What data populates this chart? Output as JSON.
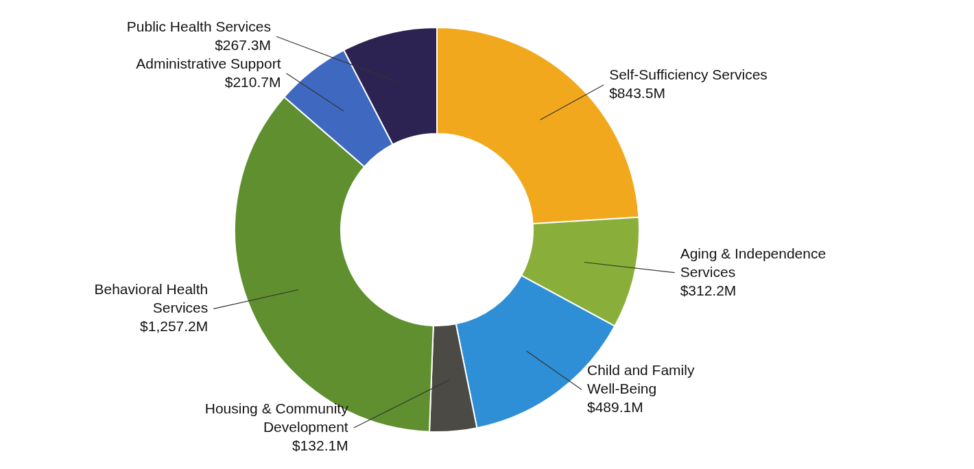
{
  "chart_data": {
    "type": "donut",
    "categories": [
      "Self-Sufficiency Services",
      "Aging & Independence Services",
      "Child and Family Well-Being",
      "Housing & Community Development",
      "Behavioral Health Services",
      "Administrative Support",
      "Public Health Services"
    ],
    "values": [
      843.5,
      312.2,
      489.1,
      132.1,
      1257.2,
      210.7,
      267.3
    ],
    "value_labels": [
      "$843.5M",
      "$312.2M",
      "$489.1M",
      "$132.1M",
      "$1,257.2M",
      "$210.7M",
      "$267.3M"
    ],
    "colors": [
      "#f2a81d",
      "#8aae3a",
      "#2e8fd6",
      "#4b4a45",
      "#5f8f2e",
      "#3f69c0",
      "#2d2352"
    ]
  }
}
